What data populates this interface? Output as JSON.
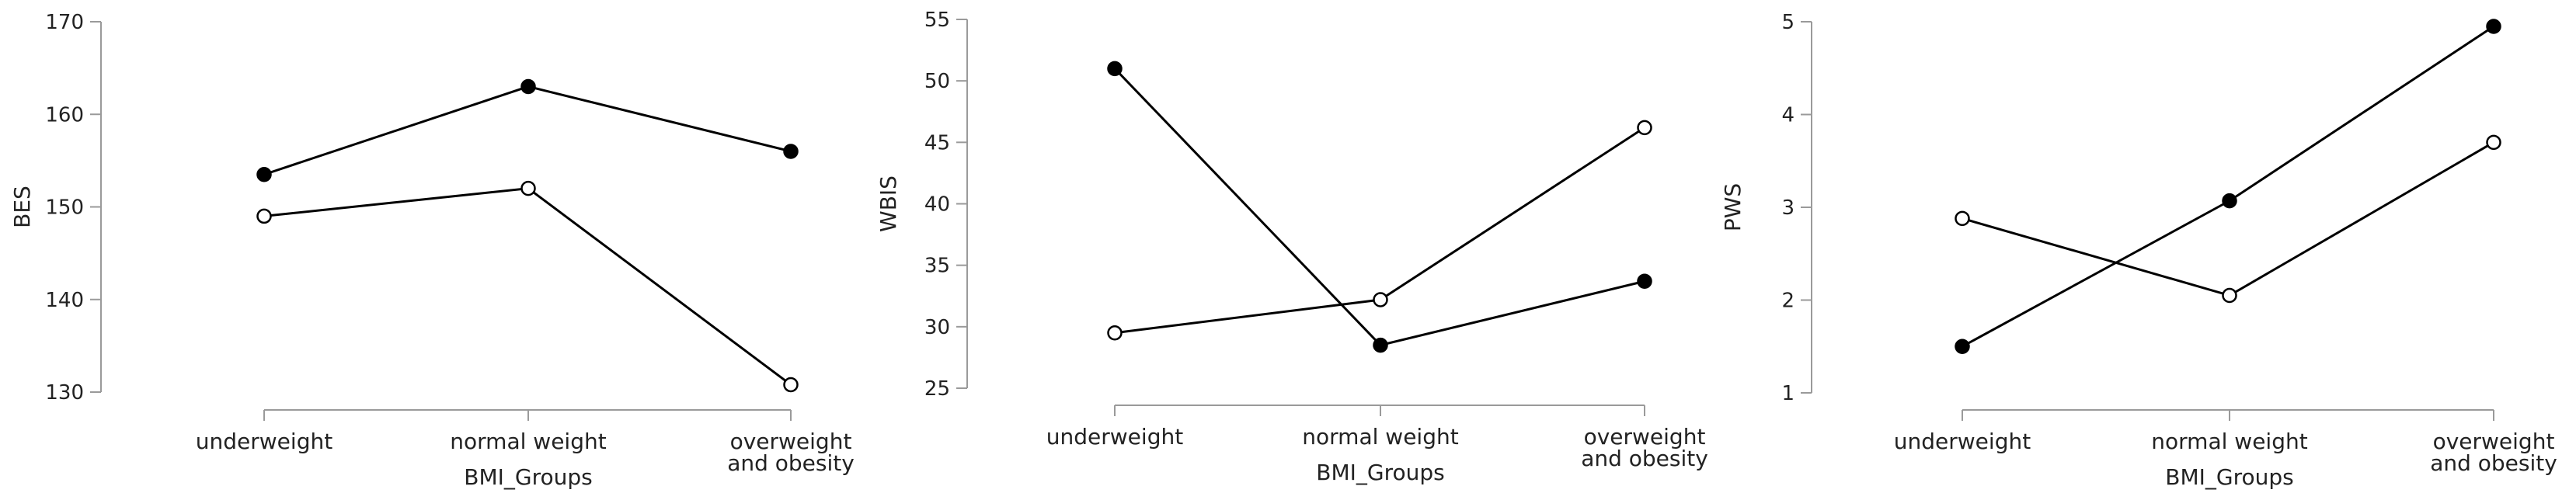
{
  "chart_data": [
    {
      "type": "line",
      "categories": [
        "underweight",
        "normal weight",
        "overweight and obesity"
      ],
      "category_lines": [
        [
          "underweight"
        ],
        [
          "normal weight"
        ],
        [
          "overweight",
          "and obesity"
        ]
      ],
      "xlabel": "BMI_Groups",
      "ylabel": "BES",
      "ylim": [
        130,
        170
      ],
      "yticks": [
        130,
        140,
        150,
        160,
        170
      ],
      "grid": false,
      "series": [
        {
          "marker": "filled",
          "values": [
            153.5,
            163.0,
            156.0
          ]
        },
        {
          "marker": "open",
          "values": [
            149.0,
            152.0,
            130.8
          ]
        }
      ]
    },
    {
      "type": "line",
      "categories": [
        "underweight",
        "normal weight",
        "overweight and obesity"
      ],
      "category_lines": [
        [
          "underweight"
        ],
        [
          "normal weight"
        ],
        [
          "overweight",
          "and obesity"
        ]
      ],
      "xlabel": "BMI_Groups",
      "ylabel": "WBIS",
      "ylim": [
        25,
        55
      ],
      "yticks": [
        25,
        30,
        35,
        40,
        45,
        50,
        55
      ],
      "grid": false,
      "series": [
        {
          "marker": "filled",
          "values": [
            51.0,
            28.5,
            33.7
          ]
        },
        {
          "marker": "open",
          "values": [
            29.5,
            32.2,
            46.2
          ]
        }
      ]
    },
    {
      "type": "line",
      "categories": [
        "underweight",
        "normal weight",
        "overweight and obesity"
      ],
      "category_lines": [
        [
          "underweight"
        ],
        [
          "normal weight"
        ],
        [
          "overweight",
          "and obesity"
        ]
      ],
      "xlabel": "BMI_Groups",
      "ylabel": "PWS",
      "ylim": [
        1,
        5
      ],
      "yticks": [
        1,
        2,
        3,
        4,
        5
      ],
      "grid": false,
      "series": [
        {
          "marker": "filled",
          "values": [
            1.5,
            3.07,
            4.95
          ]
        },
        {
          "marker": "open",
          "values": [
            2.88,
            2.05,
            3.7
          ]
        }
      ]
    }
  ]
}
